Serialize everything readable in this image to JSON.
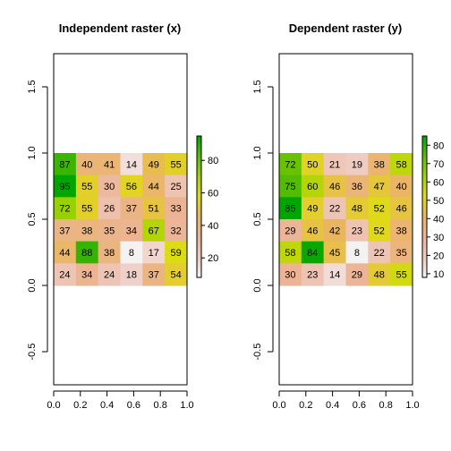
{
  "chart_data": [
    {
      "type": "heatmap",
      "title": "Independent raster (x)",
      "xlim": [
        0,
        1
      ],
      "ylim": [
        -0.75,
        1.75
      ],
      "x_ticks": [
        "0.0",
        "0.2",
        "0.4",
        "0.6",
        "0.8",
        "1.0"
      ],
      "y_ticks": [
        "-0.5",
        "0.0",
        "0.5",
        "1.0",
        "1.5"
      ],
      "extent": {
        "xmin": 0,
        "xmax": 1,
        "ymin": 0,
        "ymax": 1
      },
      "rows": [
        [
          87,
          40,
          41,
          14,
          49,
          55
        ],
        [
          95,
          55,
          30,
          56,
          44,
          25
        ],
        [
          72,
          55,
          26,
          37,
          51,
          33
        ],
        [
          37,
          38,
          35,
          34,
          67,
          32
        ],
        [
          44,
          88,
          38,
          8,
          17,
          59
        ],
        [
          24,
          34,
          24,
          18,
          37,
          54
        ]
      ],
      "legend": {
        "range": [
          8,
          95
        ],
        "ticks": [
          20,
          40,
          60,
          80
        ]
      }
    },
    {
      "type": "heatmap",
      "title": "Dependent raster (y)",
      "xlim": [
        0,
        1
      ],
      "ylim": [
        -0.75,
        1.75
      ],
      "x_ticks": [
        "0.0",
        "0.2",
        "0.4",
        "0.6",
        "0.8",
        "1.0"
      ],
      "y_ticks": [
        "-0.5",
        "0.0",
        "0.5",
        "1.0",
        "1.5"
      ],
      "extent": {
        "xmin": 0,
        "xmax": 1,
        "ymin": 0,
        "ymax": 1
      },
      "rows": [
        [
          72,
          50,
          21,
          19,
          38,
          58
        ],
        [
          75,
          60,
          46,
          36,
          47,
          40
        ],
        [
          85,
          49,
          22,
          48,
          52,
          46
        ],
        [
          29,
          46,
          42,
          23,
          52,
          38
        ],
        [
          58,
          84,
          45,
          8,
          22,
          35
        ],
        [
          30,
          23,
          14,
          29,
          48,
          55
        ]
      ],
      "legend": {
        "range": [
          8,
          85
        ],
        "ticks": [
          10,
          20,
          30,
          40,
          50,
          60,
          70,
          80
        ]
      }
    }
  ]
}
